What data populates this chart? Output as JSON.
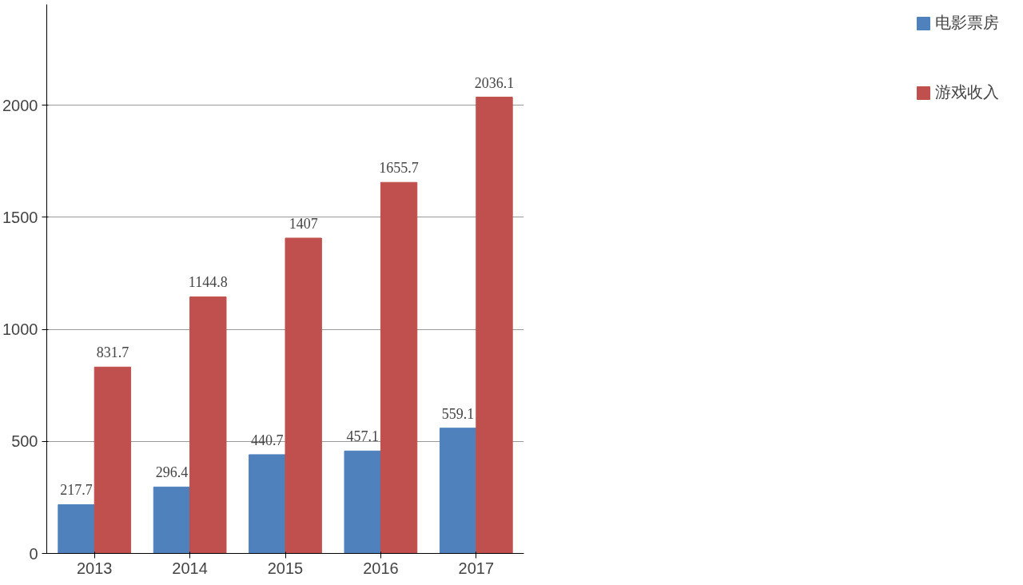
{
  "chart_data": {
    "type": "bar",
    "categories": [
      "2013",
      "2014",
      "2015",
      "2016",
      "2017"
    ],
    "series": [
      {
        "name": "电影票房",
        "color": "#4f81bd",
        "values": [
          217.7,
          296.4,
          440.7,
          457.1,
          559.1
        ]
      },
      {
        "name": "游戏收入",
        "color": "#c0504d",
        "values": [
          831.7,
          1144.8,
          1407,
          1655.7,
          2036.1
        ]
      }
    ],
    "ylim": [
      0,
      2450
    ],
    "yticks": [
      0,
      500,
      1000,
      1500,
      2000
    ],
    "grid": "y",
    "legend": "right",
    "data_labels": true
  }
}
